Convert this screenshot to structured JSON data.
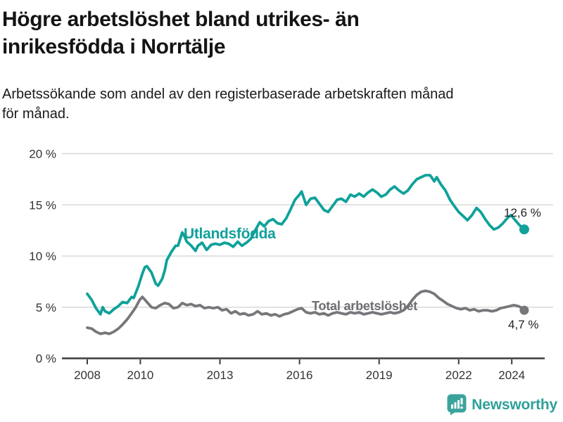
{
  "header": {
    "title_lines": [
      "Högre arbetslöshet bland utrikes- än",
      "inrikesfödda i Norrtälje"
    ],
    "subtitle_lines": [
      "Arbetssökande som andel av den registerbaserade arbetskraften månad",
      "för månad."
    ]
  },
  "chart_data": {
    "type": "line",
    "title": "Högre arbetslöshet bland utrikes- än inrikesfödda i Norrtälje",
    "subtitle": "Arbetssökande som andel av den registerbaserade arbetskraften månad för månad.",
    "unit": "%",
    "grid": "horizontal",
    "legend": "inline-labels",
    "x_axis": {
      "ticks": [
        2008,
        2010,
        2013,
        2016,
        2019,
        2022,
        2024
      ],
      "labels": [
        "2008",
        "2010",
        "2013",
        "2016",
        "2019",
        "2022",
        "2024"
      ],
      "range_years": [
        2008.0,
        2024.5
      ]
    },
    "y_axis": {
      "ticks": [
        0,
        5,
        10,
        15,
        20
      ],
      "labels": [
        "0 %",
        "5 %",
        "10 %",
        "15 %",
        "20 %"
      ],
      "range": [
        0,
        20
      ]
    },
    "series": [
      {
        "name": "Utlandsfödda",
        "color": "#0FA19A",
        "end_value": 12.6,
        "end_label": "12,6 %",
        "points": [
          [
            2008.0,
            6.3
          ],
          [
            2008.17,
            5.7
          ],
          [
            2008.33,
            4.9
          ],
          [
            2008.5,
            4.3
          ],
          [
            2008.58,
            5.0
          ],
          [
            2008.67,
            4.6
          ],
          [
            2008.83,
            4.4
          ],
          [
            2009.0,
            4.8
          ],
          [
            2009.17,
            5.1
          ],
          [
            2009.33,
            5.5
          ],
          [
            2009.5,
            5.4
          ],
          [
            2009.67,
            6.0
          ],
          [
            2009.75,
            5.9
          ],
          [
            2009.92,
            7.0
          ],
          [
            2010.08,
            8.3
          ],
          [
            2010.17,
            8.9
          ],
          [
            2010.25,
            9.0
          ],
          [
            2010.42,
            8.4
          ],
          [
            2010.58,
            7.3
          ],
          [
            2010.67,
            7.1
          ],
          [
            2010.83,
            7.8
          ],
          [
            2010.92,
            8.6
          ],
          [
            2011.0,
            9.6
          ],
          [
            2011.17,
            10.4
          ],
          [
            2011.33,
            11.0
          ],
          [
            2011.42,
            11.0
          ],
          [
            2011.58,
            12.3
          ],
          [
            2011.67,
            11.9
          ],
          [
            2011.75,
            11.4
          ],
          [
            2011.92,
            11.0
          ],
          [
            2012.08,
            10.5
          ],
          [
            2012.17,
            11.0
          ],
          [
            2012.33,
            11.3
          ],
          [
            2012.5,
            10.6
          ],
          [
            2012.67,
            11.1
          ],
          [
            2012.83,
            11.2
          ],
          [
            2013.0,
            11.1
          ],
          [
            2013.17,
            11.3
          ],
          [
            2013.33,
            11.2
          ],
          [
            2013.5,
            10.9
          ],
          [
            2013.67,
            11.4
          ],
          [
            2013.83,
            11.0
          ],
          [
            2014.0,
            11.3
          ],
          [
            2014.17,
            11.7
          ],
          [
            2014.33,
            12.5
          ],
          [
            2014.5,
            13.3
          ],
          [
            2014.67,
            12.9
          ],
          [
            2014.83,
            13.4
          ],
          [
            2015.0,
            13.6
          ],
          [
            2015.17,
            13.2
          ],
          [
            2015.33,
            13.1
          ],
          [
            2015.5,
            13.7
          ],
          [
            2015.67,
            14.6
          ],
          [
            2015.83,
            15.5
          ],
          [
            2016.0,
            16.0
          ],
          [
            2016.08,
            16.3
          ],
          [
            2016.25,
            15.0
          ],
          [
            2016.42,
            15.6
          ],
          [
            2016.58,
            15.7
          ],
          [
            2016.75,
            15.1
          ],
          [
            2016.92,
            14.5
          ],
          [
            2017.08,
            14.3
          ],
          [
            2017.25,
            14.9
          ],
          [
            2017.42,
            15.5
          ],
          [
            2017.58,
            15.6
          ],
          [
            2017.75,
            15.3
          ],
          [
            2017.92,
            16.0
          ],
          [
            2018.08,
            15.8
          ],
          [
            2018.25,
            16.1
          ],
          [
            2018.42,
            15.8
          ],
          [
            2018.58,
            16.2
          ],
          [
            2018.75,
            16.5
          ],
          [
            2018.92,
            16.2
          ],
          [
            2019.08,
            15.8
          ],
          [
            2019.25,
            16.0
          ],
          [
            2019.42,
            16.5
          ],
          [
            2019.58,
            16.8
          ],
          [
            2019.75,
            16.4
          ],
          [
            2019.92,
            16.1
          ],
          [
            2020.08,
            16.4
          ],
          [
            2020.25,
            17.0
          ],
          [
            2020.42,
            17.5
          ],
          [
            2020.58,
            17.7
          ],
          [
            2020.75,
            17.9
          ],
          [
            2020.92,
            17.9
          ],
          [
            2021.08,
            17.3
          ],
          [
            2021.17,
            17.7
          ],
          [
            2021.33,
            17.0
          ],
          [
            2021.5,
            16.4
          ],
          [
            2021.67,
            15.5
          ],
          [
            2021.83,
            14.9
          ],
          [
            2022.0,
            14.3
          ],
          [
            2022.17,
            13.9
          ],
          [
            2022.33,
            13.5
          ],
          [
            2022.5,
            14.0
          ],
          [
            2022.67,
            14.7
          ],
          [
            2022.83,
            14.3
          ],
          [
            2023.0,
            13.6
          ],
          [
            2023.17,
            13.0
          ],
          [
            2023.33,
            12.6
          ],
          [
            2023.5,
            12.8
          ],
          [
            2023.67,
            13.2
          ],
          [
            2023.83,
            13.7
          ],
          [
            2023.97,
            14.0
          ],
          [
            2024.13,
            13.5
          ],
          [
            2024.3,
            13.0
          ],
          [
            2024.47,
            12.6
          ]
        ]
      },
      {
        "name": "Total arbetslöshet",
        "color": "#77777B",
        "end_value": 4.7,
        "end_label": "4,7 %",
        "points": [
          [
            2008.0,
            3.0
          ],
          [
            2008.17,
            2.9
          ],
          [
            2008.33,
            2.6
          ],
          [
            2008.5,
            2.4
          ],
          [
            2008.67,
            2.5
          ],
          [
            2008.83,
            2.4
          ],
          [
            2009.0,
            2.6
          ],
          [
            2009.17,
            2.9
          ],
          [
            2009.33,
            3.3
          ],
          [
            2009.5,
            3.8
          ],
          [
            2009.67,
            4.4
          ],
          [
            2009.83,
            5.0
          ],
          [
            2009.97,
            5.7
          ],
          [
            2010.08,
            6.0
          ],
          [
            2010.25,
            5.5
          ],
          [
            2010.42,
            5.0
          ],
          [
            2010.58,
            4.9
          ],
          [
            2010.75,
            5.2
          ],
          [
            2010.92,
            5.4
          ],
          [
            2011.08,
            5.3
          ],
          [
            2011.25,
            4.9
          ],
          [
            2011.42,
            5.0
          ],
          [
            2011.58,
            5.4
          ],
          [
            2011.75,
            5.2
          ],
          [
            2011.92,
            5.3
          ],
          [
            2012.08,
            5.1
          ],
          [
            2012.25,
            5.2
          ],
          [
            2012.42,
            4.9
          ],
          [
            2012.58,
            5.0
          ],
          [
            2012.75,
            4.9
          ],
          [
            2012.92,
            5.0
          ],
          [
            2013.08,
            4.7
          ],
          [
            2013.25,
            4.8
          ],
          [
            2013.42,
            4.4
          ],
          [
            2013.58,
            4.6
          ],
          [
            2013.75,
            4.3
          ],
          [
            2013.92,
            4.4
          ],
          [
            2014.08,
            4.2
          ],
          [
            2014.25,
            4.3
          ],
          [
            2014.42,
            4.6
          ],
          [
            2014.58,
            4.3
          ],
          [
            2014.75,
            4.4
          ],
          [
            2014.92,
            4.2
          ],
          [
            2015.08,
            4.3
          ],
          [
            2015.25,
            4.1
          ],
          [
            2015.42,
            4.3
          ],
          [
            2015.58,
            4.4
          ],
          [
            2015.75,
            4.6
          ],
          [
            2015.92,
            4.8
          ],
          [
            2016.08,
            4.9
          ],
          [
            2016.25,
            4.5
          ],
          [
            2016.42,
            4.4
          ],
          [
            2016.58,
            4.5
          ],
          [
            2016.75,
            4.3
          ],
          [
            2016.92,
            4.4
          ],
          [
            2017.08,
            4.2
          ],
          [
            2017.25,
            4.4
          ],
          [
            2017.42,
            4.5
          ],
          [
            2017.58,
            4.4
          ],
          [
            2017.75,
            4.3
          ],
          [
            2017.92,
            4.5
          ],
          [
            2018.08,
            4.4
          ],
          [
            2018.25,
            4.5
          ],
          [
            2018.42,
            4.3
          ],
          [
            2018.58,
            4.4
          ],
          [
            2018.75,
            4.5
          ],
          [
            2018.92,
            4.4
          ],
          [
            2019.08,
            4.3
          ],
          [
            2019.25,
            4.4
          ],
          [
            2019.42,
            4.5
          ],
          [
            2019.58,
            4.4
          ],
          [
            2019.75,
            4.5
          ],
          [
            2019.92,
            4.7
          ],
          [
            2020.08,
            5.1
          ],
          [
            2020.25,
            5.7
          ],
          [
            2020.42,
            6.2
          ],
          [
            2020.58,
            6.5
          ],
          [
            2020.75,
            6.6
          ],
          [
            2020.92,
            6.5
          ],
          [
            2021.08,
            6.3
          ],
          [
            2021.25,
            5.9
          ],
          [
            2021.42,
            5.6
          ],
          [
            2021.58,
            5.3
          ],
          [
            2021.75,
            5.1
          ],
          [
            2021.92,
            4.9
          ],
          [
            2022.08,
            4.8
          ],
          [
            2022.25,
            4.9
          ],
          [
            2022.42,
            4.7
          ],
          [
            2022.58,
            4.8
          ],
          [
            2022.75,
            4.6
          ],
          [
            2022.92,
            4.7
          ],
          [
            2023.08,
            4.7
          ],
          [
            2023.25,
            4.6
          ],
          [
            2023.42,
            4.7
          ],
          [
            2023.58,
            4.9
          ],
          [
            2023.75,
            5.0
          ],
          [
            2023.92,
            5.1
          ],
          [
            2024.08,
            5.2
          ],
          [
            2024.25,
            5.1
          ],
          [
            2024.4,
            4.9
          ],
          [
            2024.47,
            4.7
          ]
        ]
      }
    ]
  },
  "footer": {
    "brand": "Newsworthy"
  },
  "colors": {
    "teal": "#0FA19A",
    "gray": "#77777B",
    "gridline": "#D8D8D8",
    "axis": "#3D3D3D",
    "logo_icon": "#3CA39C",
    "logo_text": "#2EA09A"
  }
}
